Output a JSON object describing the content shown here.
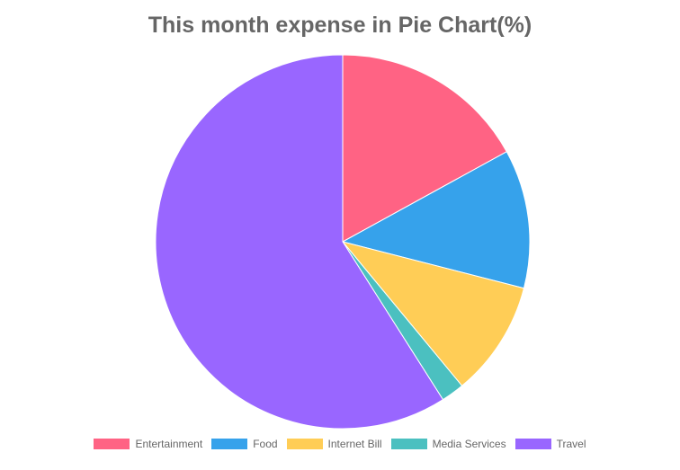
{
  "chart_data": {
    "type": "pie",
    "title": "This month expense in Pie Chart(%)",
    "categories": [
      "Entertainment",
      "Food",
      "Internet Bill",
      "Media Services",
      "Travel"
    ],
    "values": [
      17,
      12,
      10,
      2,
      59
    ],
    "colors": [
      "#ff6384",
      "#36a2eb",
      "#ffcd56",
      "#4bc0c0",
      "#9966ff"
    ],
    "legend_position": "bottom"
  }
}
